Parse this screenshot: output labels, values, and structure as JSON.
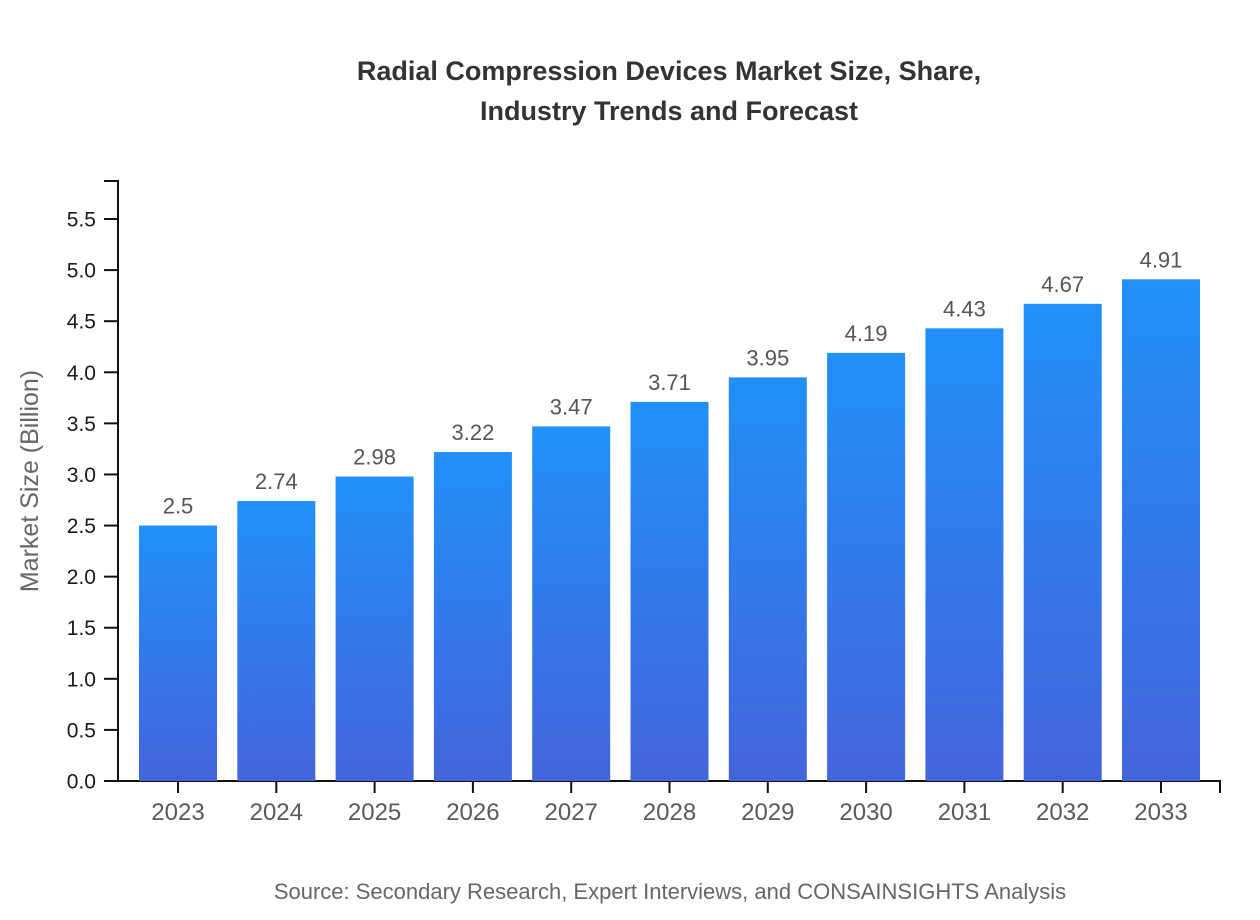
{
  "title": {
    "line1": "Radial Compression Devices Market Size, Share,",
    "line2": "Industry Trends and Forecast"
  },
  "y_axis": {
    "label": "Market Size (Billion)"
  },
  "source": {
    "text": "Source: Secondary Research, Expert Interviews, and CONSAINSIGHTS Analysis"
  },
  "colors": {
    "background": "#ffffff",
    "title": "#333333",
    "axis": "#111111",
    "y_tick_label": "#1a1a1a",
    "x_tick_label": "#5a5a5a",
    "value_label": "#555555",
    "y_axis_title": "#666666",
    "source": "#666666",
    "bar_gradient_top": "#2190f9",
    "bar_gradient_bottom": "#4464dc"
  },
  "chart_data": {
    "type": "bar",
    "title": "Radial Compression Devices Market Size, Share, Industry Trends and Forecast",
    "categories": [
      "2023",
      "2024",
      "2025",
      "2026",
      "2027",
      "2028",
      "2029",
      "2030",
      "2031",
      "2032",
      "2033"
    ],
    "values": [
      2.5,
      2.74,
      2.98,
      3.22,
      3.47,
      3.71,
      3.95,
      4.19,
      4.43,
      4.67,
      4.91
    ],
    "value_labels": [
      "2.5",
      "2.74",
      "2.98",
      "3.22",
      "3.47",
      "3.71",
      "3.95",
      "4.19",
      "4.43",
      "4.67",
      "4.91"
    ],
    "xlabel": "",
    "ylabel": "Market Size (Billion)",
    "ylim": [
      0,
      5.5
    ],
    "ytick_step": 0.5,
    "grid": false,
    "legend": "none"
  }
}
